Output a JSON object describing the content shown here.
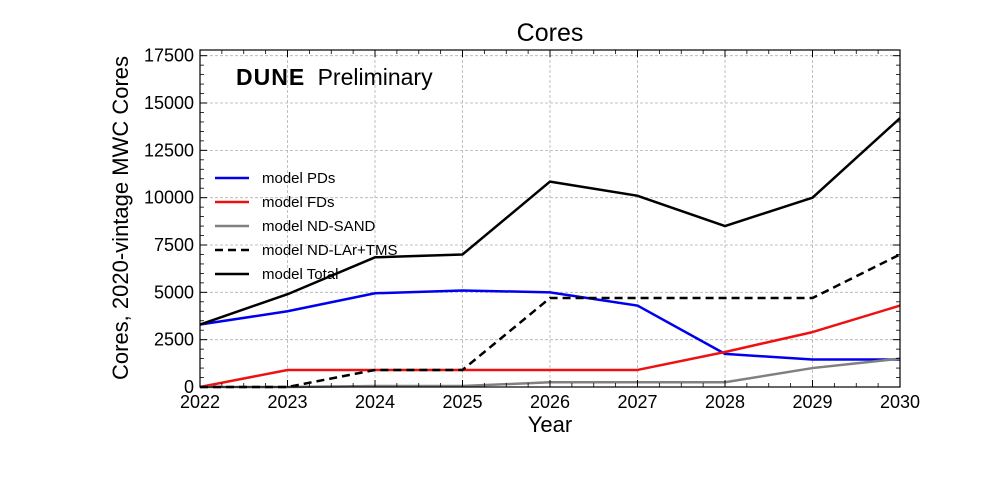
{
  "chart_data": {
    "type": "line",
    "title": "Cores",
    "xlabel": "Year",
    "ylabel": "Cores, 2020-vintage MWC Cores",
    "annotation_bold": "DUNE",
    "annotation_text": "Preliminary",
    "x": [
      2022,
      2023,
      2024,
      2025,
      2026,
      2027,
      2028,
      2029,
      2030
    ],
    "xticks": [
      "2022",
      "2023",
      "2024",
      "2025",
      "2026",
      "2027",
      "2028",
      "2029",
      "2030"
    ],
    "xlim": [
      2022,
      2030
    ],
    "ylim": [
      0,
      17800
    ],
    "yticks": [
      0,
      2500,
      5000,
      7500,
      10000,
      12500,
      15000,
      17500
    ],
    "grid": true,
    "legend_position": "center-left",
    "series": [
      {
        "name": "model PDs",
        "color": "#0000ee",
        "dash": false,
        "values": [
          3300,
          4000,
          4950,
          5100,
          5000,
          4300,
          1750,
          1450,
          1450
        ]
      },
      {
        "name": "model FDs",
        "color": "#ee1111",
        "dash": false,
        "values": [
          0,
          900,
          900,
          900,
          900,
          900,
          1850,
          2900,
          4300
        ]
      },
      {
        "name": "model ND-SAND",
        "color": "#808080",
        "dash": false,
        "values": [
          0,
          0,
          50,
          50,
          250,
          250,
          250,
          1000,
          1500
        ]
      },
      {
        "name": "model ND-LAr+TMS",
        "color": "#000000",
        "dash": true,
        "values": [
          0,
          0,
          900,
          900,
          4700,
          4700,
          4700,
          4700,
          7000
        ]
      },
      {
        "name": "model Total",
        "color": "#000000",
        "dash": false,
        "values": [
          3300,
          4900,
          6850,
          7000,
          10850,
          10100,
          8500,
          10000,
          14200
        ]
      }
    ]
  }
}
